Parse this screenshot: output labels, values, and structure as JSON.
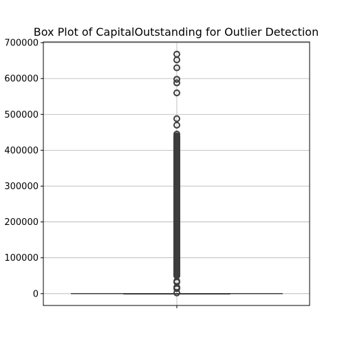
{
  "chart_data": {
    "type": "box",
    "title": "Box Plot of CapitalOutstanding for Outlier Detection",
    "xlabel": "",
    "ylabel": "",
    "ylim": [
      -33000,
      702000
    ],
    "yticks": [
      0,
      100000,
      200000,
      300000,
      400000,
      500000,
      600000,
      700000
    ],
    "ytick_labels": [
      "0",
      "100000",
      "200000",
      "300000",
      "400000",
      "500000",
      "600000",
      "700000"
    ],
    "grid": true,
    "box": {
      "whisker_low": 0,
      "q1": 0,
      "median": 0,
      "q3": 0,
      "whisker_high": 0,
      "outlier_dense_range": [
        50000,
        440000
      ],
      "outliers": [
        668000,
        652000,
        630000,
        598000,
        588000,
        560000,
        488000,
        470000,
        445000,
        420000,
        410000,
        70000,
        55000,
        50000,
        35000,
        32000,
        18000,
        14000,
        2000
      ]
    },
    "colors": {
      "box_line": "#3d3d3d",
      "grid": "#b0b0b0",
      "axes": "#000000"
    }
  }
}
